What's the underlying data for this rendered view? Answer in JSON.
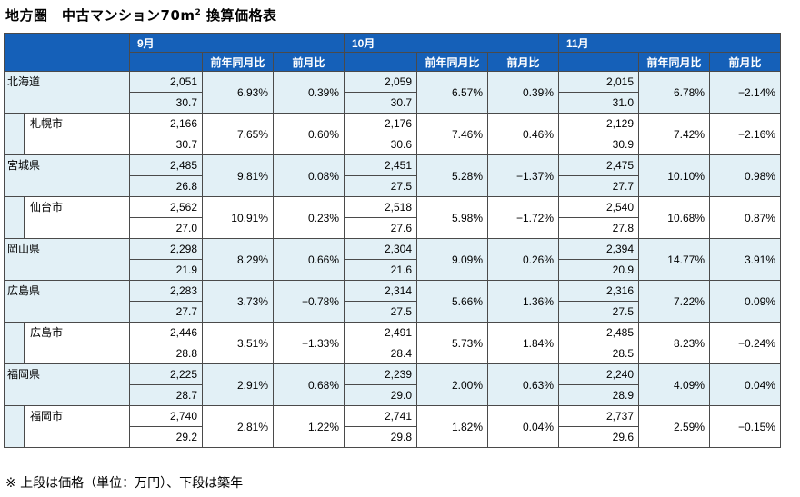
{
  "title": "地方圏 中古マンション70㎡換算価格表",
  "title_main": "地方圏　中古マンション70m",
  "title_sup": "2",
  "title_tail": " 換算価格表",
  "months": [
    "9月",
    "10月",
    "11月"
  ],
  "col_yoy": "前年同月比",
  "col_mom": "前月比",
  "note": "※ 上段は価格（単位：万円）、下段は築年",
  "rows": [
    {
      "name": "北海道",
      "type": "pref",
      "m": [
        {
          "price": "2,051",
          "age": "30.7",
          "yoy": "6.93%",
          "mom": "0.39%"
        },
        {
          "price": "2,059",
          "age": "30.7",
          "yoy": "6.57%",
          "mom": "0.39%"
        },
        {
          "price": "2,015",
          "age": "31.0",
          "yoy": "6.78%",
          "mom": "−2.14%"
        }
      ]
    },
    {
      "name": "札幌市",
      "type": "city",
      "m": [
        {
          "price": "2,166",
          "age": "30.7",
          "yoy": "7.65%",
          "mom": "0.60%"
        },
        {
          "price": "2,176",
          "age": "30.6",
          "yoy": "7.46%",
          "mom": "0.46%"
        },
        {
          "price": "2,129",
          "age": "30.9",
          "yoy": "7.42%",
          "mom": "−2.16%"
        }
      ]
    },
    {
      "name": "宮城県",
      "type": "pref",
      "m": [
        {
          "price": "2,485",
          "age": "26.8",
          "yoy": "9.81%",
          "mom": "0.08%"
        },
        {
          "price": "2,451",
          "age": "27.5",
          "yoy": "5.28%",
          "mom": "−1.37%"
        },
        {
          "price": "2,475",
          "age": "27.7",
          "yoy": "10.10%",
          "mom": "0.98%"
        }
      ]
    },
    {
      "name": "仙台市",
      "type": "city",
      "m": [
        {
          "price": "2,562",
          "age": "27.0",
          "yoy": "10.91%",
          "mom": "0.23%"
        },
        {
          "price": "2,518",
          "age": "27.6",
          "yoy": "5.98%",
          "mom": "−1.72%"
        },
        {
          "price": "2,540",
          "age": "27.8",
          "yoy": "10.68%",
          "mom": "0.87%"
        }
      ]
    },
    {
      "name": "岡山県",
      "type": "pref",
      "m": [
        {
          "price": "2,298",
          "age": "21.9",
          "yoy": "8.29%",
          "mom": "0.66%"
        },
        {
          "price": "2,304",
          "age": "21.6",
          "yoy": "9.09%",
          "mom": "0.26%"
        },
        {
          "price": "2,394",
          "age": "20.9",
          "yoy": "14.77%",
          "mom": "3.91%"
        }
      ]
    },
    {
      "name": "広島県",
      "type": "pref",
      "m": [
        {
          "price": "2,283",
          "age": "27.7",
          "yoy": "3.73%",
          "mom": "−0.78%"
        },
        {
          "price": "2,314",
          "age": "27.5",
          "yoy": "5.66%",
          "mom": "1.36%"
        },
        {
          "price": "2,316",
          "age": "27.5",
          "yoy": "7.22%",
          "mom": "0.09%"
        }
      ]
    },
    {
      "name": "広島市",
      "type": "city",
      "m": [
        {
          "price": "2,446",
          "age": "28.8",
          "yoy": "3.51%",
          "mom": "−1.33%"
        },
        {
          "price": "2,491",
          "age": "28.4",
          "yoy": "5.73%",
          "mom": "1.84%"
        },
        {
          "price": "2,485",
          "age": "28.5",
          "yoy": "8.23%",
          "mom": "−0.24%"
        }
      ]
    },
    {
      "name": "福岡県",
      "type": "pref",
      "m": [
        {
          "price": "2,225",
          "age": "28.7",
          "yoy": "2.91%",
          "mom": "0.68%"
        },
        {
          "price": "2,239",
          "age": "29.0",
          "yoy": "2.00%",
          "mom": "0.63%"
        },
        {
          "price": "2,240",
          "age": "28.9",
          "yoy": "4.09%",
          "mom": "0.04%"
        }
      ]
    },
    {
      "name": "福岡市",
      "type": "city",
      "m": [
        {
          "price": "2,740",
          "age": "29.2",
          "yoy": "2.81%",
          "mom": "1.22%"
        },
        {
          "price": "2,741",
          "age": "29.8",
          "yoy": "1.82%",
          "mom": "0.04%"
        },
        {
          "price": "2,737",
          "age": "29.6",
          "yoy": "2.59%",
          "mom": "−0.15%"
        }
      ]
    }
  ]
}
